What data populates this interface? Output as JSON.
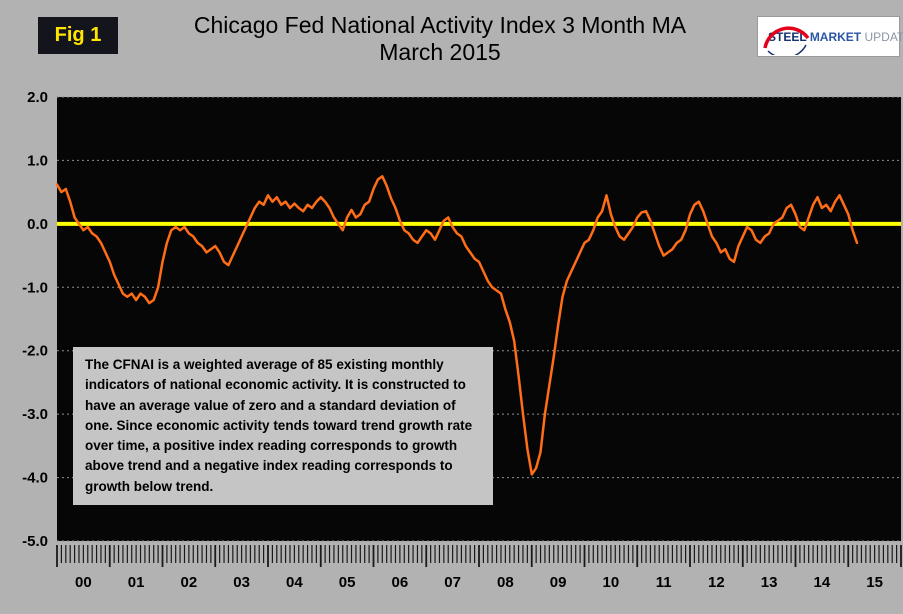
{
  "header": {
    "fig_label": "Fig 1",
    "title_line1": "Chicago Fed National Activity Index 3 Month MA",
    "title_line2": "March 2015",
    "logo": {
      "steel": "STEEL",
      "market": "MARKET",
      "update": "UPDATE"
    }
  },
  "annotation": {
    "text": "The CFNAI is a weighted average of 85 existing monthly indicators of national economic activity. It is constructed to have an average value of zero and a standard deviation of one. Since economic activity tends toward trend growth rate over time, a positive index reading corresponds to growth above trend and a negative index reading corresponds to growth below trend."
  },
  "colors": {
    "page_bg": "#b2b2b2",
    "plot_bg": "#060606",
    "grid": "#8f8f8f",
    "zero_line": "#ffff00",
    "series": "#ff6d17",
    "axis_text": "#000000",
    "fig_bg": "#14141d",
    "fig_text": "#ffe400"
  },
  "chart_data": {
    "type": "line",
    "title": "Chicago Fed National Activity Index 3 Month MA",
    "subtitle": "March 2015",
    "x_start": "2000-01",
    "x_end": "2015-03",
    "frequency": "monthly",
    "x_tick_labels": [
      "00",
      "01",
      "02",
      "03",
      "04",
      "05",
      "06",
      "07",
      "08",
      "09",
      "10",
      "11",
      "12",
      "13",
      "14",
      "15"
    ],
    "y_ticks": [
      2.0,
      1.0,
      0.0,
      -1.0,
      -2.0,
      -3.0,
      -4.0,
      -5.0
    ],
    "ylim": [
      -5.0,
      2.0
    ],
    "grid": true,
    "legend": "none",
    "zero_reference_line": 0.0,
    "series": [
      {
        "name": "CFNAI 3 Month Moving Average",
        "color": "#ff6d17",
        "values": [
          0.62,
          0.5,
          0.55,
          0.35,
          0.1,
          0.0,
          -0.1,
          -0.05,
          -0.15,
          -0.2,
          -0.3,
          -0.45,
          -0.6,
          -0.8,
          -0.95,
          -1.1,
          -1.15,
          -1.1,
          -1.2,
          -1.1,
          -1.15,
          -1.25,
          -1.2,
          -1.0,
          -0.6,
          -0.3,
          -0.1,
          -0.05,
          -0.1,
          -0.05,
          -0.15,
          -0.2,
          -0.3,
          -0.35,
          -0.45,
          -0.4,
          -0.35,
          -0.45,
          -0.6,
          -0.65,
          -0.5,
          -0.35,
          -0.2,
          -0.05,
          0.1,
          0.25,
          0.35,
          0.3,
          0.45,
          0.35,
          0.42,
          0.3,
          0.35,
          0.25,
          0.32,
          0.25,
          0.2,
          0.3,
          0.25,
          0.35,
          0.42,
          0.35,
          0.25,
          0.1,
          0.0,
          -0.1,
          0.1,
          0.22,
          0.1,
          0.15,
          0.3,
          0.35,
          0.55,
          0.7,
          0.75,
          0.6,
          0.4,
          0.25,
          0.05,
          -0.1,
          -0.15,
          -0.25,
          -0.3,
          -0.2,
          -0.1,
          -0.15,
          -0.25,
          -0.1,
          0.05,
          0.1,
          -0.05,
          -0.15,
          -0.2,
          -0.35,
          -0.45,
          -0.55,
          -0.6,
          -0.75,
          -0.9,
          -1.0,
          -1.05,
          -1.1,
          -1.35,
          -1.55,
          -1.85,
          -2.4,
          -3.0,
          -3.55,
          -3.95,
          -3.85,
          -3.6,
          -3.0,
          -2.55,
          -2.1,
          -1.6,
          -1.15,
          -0.9,
          -0.75,
          -0.6,
          -0.45,
          -0.3,
          -0.25,
          -0.1,
          0.1,
          0.2,
          0.45,
          0.15,
          -0.05,
          -0.2,
          -0.25,
          -0.15,
          -0.05,
          0.1,
          0.18,
          0.2,
          0.05,
          -0.15,
          -0.35,
          -0.5,
          -0.45,
          -0.4,
          -0.3,
          -0.25,
          -0.1,
          0.15,
          0.3,
          0.35,
          0.2,
          0.0,
          -0.2,
          -0.3,
          -0.45,
          -0.4,
          -0.55,
          -0.6,
          -0.35,
          -0.2,
          -0.05,
          -0.1,
          -0.25,
          -0.3,
          -0.2,
          -0.15,
          0.0,
          0.05,
          0.1,
          0.25,
          0.3,
          0.15,
          -0.05,
          -0.1,
          0.1,
          0.3,
          0.42,
          0.25,
          0.3,
          0.2,
          0.35,
          0.45,
          0.3,
          0.15,
          -0.1,
          -0.3
        ]
      }
    ]
  }
}
